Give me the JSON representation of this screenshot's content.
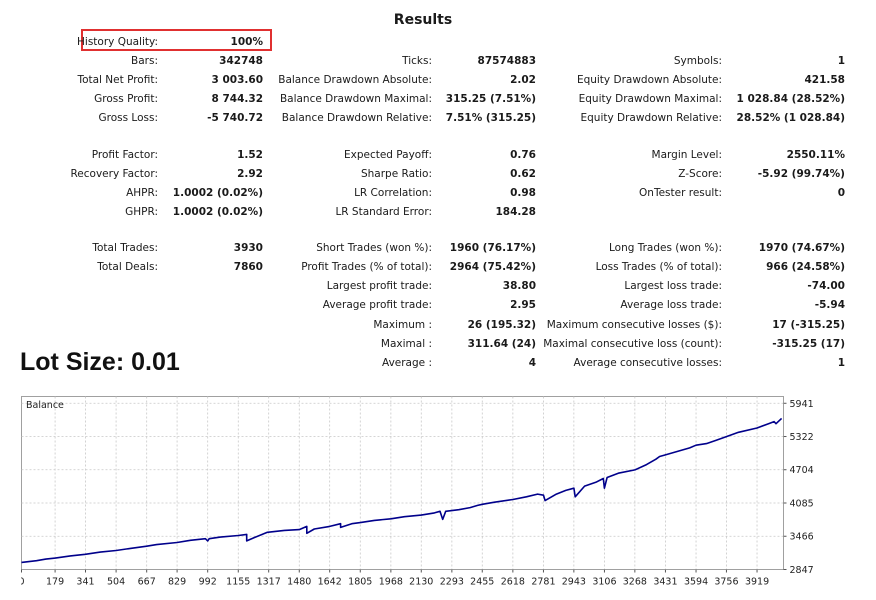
{
  "report": {
    "title": "Results",
    "history_quality": {
      "label": "History Quality:",
      "value": "100%"
    },
    "col1": [
      {
        "label": "Bars:",
        "value": "342748"
      },
      {
        "label": "Total Net Profit:",
        "value": "3 003.60"
      },
      {
        "label": "Gross Profit:",
        "value": "8 744.32"
      },
      {
        "label": "Gross Loss:",
        "value": "-5 740.72"
      },
      {
        "label": "Profit Factor:",
        "value": "1.52"
      },
      {
        "label": "Recovery Factor:",
        "value": "2.92"
      },
      {
        "label": "AHPR:",
        "value": "1.0002 (0.02%)"
      },
      {
        "label": "GHPR:",
        "value": "1.0002 (0.02%)"
      },
      {
        "label": "Total Trades:",
        "value": "3930"
      },
      {
        "label": "Total Deals:",
        "value": "7860"
      }
    ],
    "col2": [
      {
        "label": "Ticks:",
        "value": "87574883"
      },
      {
        "label": "Balance Drawdown Absolute:",
        "value": "2.02"
      },
      {
        "label": "Balance Drawdown Maximal:",
        "value": "315.25 (7.51%)"
      },
      {
        "label": "Balance Drawdown Relative:",
        "value": "7.51% (315.25)"
      },
      {
        "label": "Expected Payoff:",
        "value": "0.76"
      },
      {
        "label": "Sharpe Ratio:",
        "value": "0.62"
      },
      {
        "label": "LR Correlation:",
        "value": "0.98"
      },
      {
        "label": "LR Standard Error:",
        "value": "184.28"
      },
      {
        "label": "Short Trades (won %):",
        "value": "1960 (76.17%)"
      },
      {
        "label": "Profit Trades (% of total):",
        "value": "2964 (75.42%)"
      },
      {
        "label": "Largest profit trade:",
        "value": "38.80"
      },
      {
        "label": "Average profit trade:",
        "value": "2.95"
      },
      {
        "label": "Maximum :",
        "value": "26 (195.32)"
      },
      {
        "label": "Maximal :",
        "value": "311.64 (24)"
      },
      {
        "label": "Average :",
        "value": "4"
      }
    ],
    "col3": [
      {
        "label": "Symbols:",
        "value": "1"
      },
      {
        "label": "Equity Drawdown Absolute:",
        "value": "421.58"
      },
      {
        "label": "Equity Drawdown Maximal:",
        "value": "1 028.84 (28.52%)"
      },
      {
        "label": "Equity Drawdown Relative:",
        "value": "28.52% (1 028.84)"
      },
      {
        "label": "Margin Level:",
        "value": "2550.11%"
      },
      {
        "label": "Z-Score:",
        "value": "-5.92 (99.74%)"
      },
      {
        "label": "OnTester result:",
        "value": "0"
      },
      {
        "label": "Long Trades (won %):",
        "value": "1970 (74.67%)"
      },
      {
        "label": "Loss Trades (% of total):",
        "value": "966 (24.58%)"
      },
      {
        "label": "Largest loss trade:",
        "value": "-74.00"
      },
      {
        "label": "Average loss trade:",
        "value": "-5.94"
      },
      {
        "label": "Maximum consecutive losses ($):",
        "value": "17 (-315.25)"
      },
      {
        "label": "Maximal consecutive loss (count):",
        "value": "-315.25 (17)"
      },
      {
        "label": "Average consecutive losses:",
        "value": "1"
      }
    ]
  },
  "lot_size": "Lot Size: 0.01",
  "chart_data": {
    "type": "line",
    "title": "Balance",
    "line_color": "#00008b",
    "grid": true,
    "x_ticks": [
      0,
      179,
      341,
      504,
      667,
      829,
      992,
      1155,
      1317,
      1480,
      1642,
      1805,
      1968,
      2130,
      2293,
      2455,
      2618,
      2781,
      2943,
      3106,
      3268,
      3431,
      3594,
      3756,
      3919
    ],
    "y_ticks": [
      2847,
      3466,
      4085,
      4704,
      5322,
      5941
    ],
    "xlim": [
      0,
      4060
    ],
    "ylim": [
      2847,
      6067
    ],
    "series": [
      {
        "x": [
          0,
          80,
          130,
          180,
          260,
          340,
          420,
          504,
          580,
          667,
          720,
          829,
          900,
          980,
          992,
          1000,
          1060,
          1155,
          1200,
          1200,
          1240,
          1310,
          1400,
          1480,
          1520,
          1520,
          1560,
          1642,
          1700,
          1700,
          1760,
          1805,
          1880,
          1968,
          2040,
          2130,
          2200,
          2230,
          2244,
          2260,
          2330,
          2390,
          2430,
          2455,
          2520,
          2618,
          2690,
          2750,
          2781,
          2790,
          2850,
          2900,
          2943,
          2950,
          3000,
          3060,
          3100,
          3106,
          3120,
          3180,
          3268,
          3330,
          3380,
          3400,
          3431,
          3500,
          3560,
          3594,
          3650,
          3700,
          3756,
          3820,
          3919,
          3980,
          4010,
          4020,
          4050
        ],
        "y": [
          2980,
          3010,
          3040,
          3060,
          3100,
          3130,
          3170,
          3200,
          3240,
          3280,
          3310,
          3350,
          3390,
          3420,
          3380,
          3420,
          3450,
          3480,
          3500,
          3380,
          3440,
          3540,
          3575,
          3590,
          3650,
          3520,
          3600,
          3650,
          3700,
          3630,
          3700,
          3720,
          3760,
          3790,
          3830,
          3860,
          3900,
          3930,
          3780,
          3930,
          3960,
          4000,
          4040,
          4060,
          4100,
          4150,
          4200,
          4250,
          4230,
          4130,
          4250,
          4320,
          4360,
          4200,
          4400,
          4470,
          4540,
          4360,
          4560,
          4640,
          4700,
          4800,
          4900,
          4950,
          4980,
          5050,
          5110,
          5160,
          5190,
          5250,
          5320,
          5400,
          5480,
          5560,
          5600,
          5560,
          5660
        ]
      }
    ]
  }
}
